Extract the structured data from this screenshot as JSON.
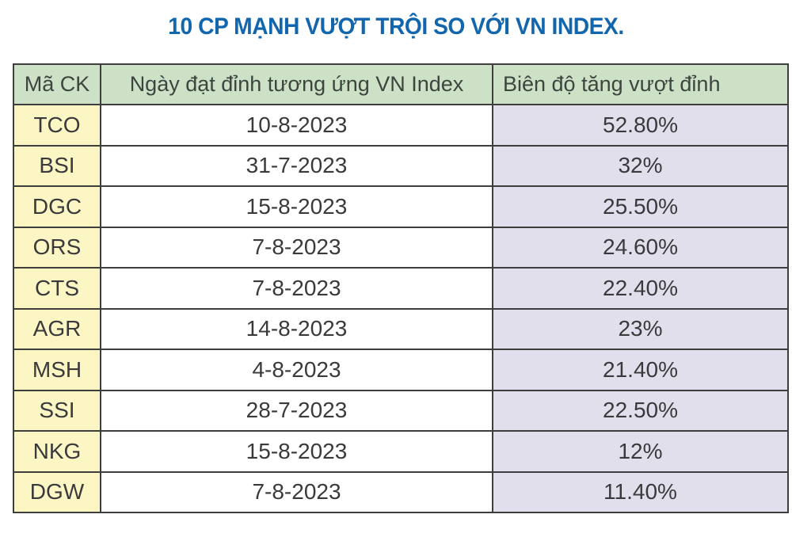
{
  "chart_data": {
    "type": "table",
    "title": "10 CP MẠNH VƯỢT TRỘI SO VỚI VN INDEX.",
    "columns": [
      "Mã CK",
      "Ngày đạt đỉnh tương ứng VN Index",
      "Biên độ tăng vượt đỉnh"
    ],
    "rows": [
      [
        "TCO",
        "10-8-2023",
        "52.80%"
      ],
      [
        "BSI",
        "31-7-2023",
        "32%"
      ],
      [
        "DGC",
        "15-8-2023",
        "25.50%"
      ],
      [
        "ORS",
        "7-8-2023",
        "24.60%"
      ],
      [
        "CTS",
        "7-8-2023",
        "22.40%"
      ],
      [
        "AGR",
        "14-8-2023",
        "23%"
      ],
      [
        "MSH",
        "4-8-2023",
        "21.40%"
      ],
      [
        "SSI",
        "28-7-2023",
        "22.50%"
      ],
      [
        "NKG",
        "15-8-2023",
        "12%"
      ],
      [
        "DGW",
        "7-8-2023",
        "11.40%"
      ]
    ],
    "layout": {
      "legend": "none",
      "grid": "on"
    },
    "colors": {
      "title_text": "#1266ad",
      "header_bg": "#cce1c6",
      "code_column_bg": "#fcf6c5",
      "date_column_bg": "#ffffff",
      "gain_column_bg": "#e1dfec",
      "border": "#3e3e3e",
      "body_text": "#3a3a3c"
    }
  }
}
